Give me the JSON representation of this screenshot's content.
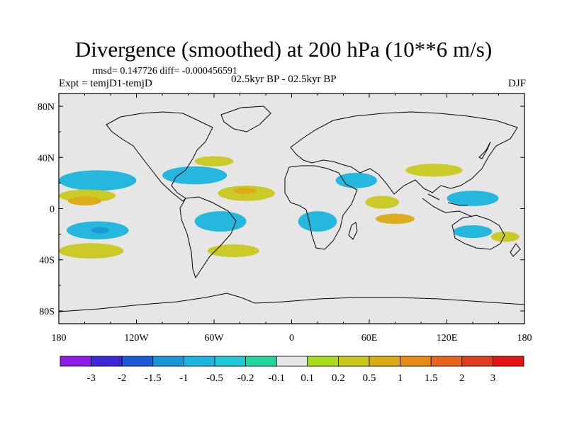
{
  "chart_data": {
    "type": "heatmap",
    "subtype": "filled-contour world map",
    "title": "Divergence (smoothed) at 200 hPa (10**6 m/s)",
    "stats": "rmsd= 0.147726 diff= -0.000456591",
    "experiment": "Expt = temjD1-temjD",
    "period": "02.5kyr BP - 02.5kyr BP",
    "season": "DJF",
    "x_axis": {
      "range": [
        -180,
        180
      ],
      "ticks": [
        -180,
        -120,
        -60,
        0,
        60,
        120,
        180
      ],
      "tick_labels": [
        "180",
        "120W",
        "60W",
        "0",
        "60E",
        "120E",
        "180"
      ]
    },
    "y_axis": {
      "range": [
        -90,
        90
      ],
      "ticks": [
        80,
        40,
        0,
        -40,
        -80
      ],
      "tick_labels": [
        "80N",
        "40N",
        "0",
        "40S",
        "80S"
      ]
    },
    "colorbar": {
      "labels": [
        "-3",
        "-2",
        "-1.5",
        "-1",
        "-0.5",
        "-0.2",
        "-0.1",
        "0.1",
        "0.2",
        "0.5",
        "1",
        "1.5",
        "2",
        "3"
      ],
      "colors": [
        "#8c1ce6",
        "#3c28d6",
        "#1e5ad6",
        "#1a96d6",
        "#1ab4dc",
        "#1ec8d4",
        "#26d6a0",
        "#e6e6e6",
        "#a8dc1e",
        "#c8c81e",
        "#dcaa14",
        "#e68c14",
        "#e6641e",
        "#e03c1e",
        "#e61414"
      ]
    },
    "regions": [
      {
        "name": "north-pacific-neg",
        "level": "-0.5",
        "lon": -150,
        "lat": 22,
        "w": 60,
        "h": 16
      },
      {
        "name": "north-pacific-pos",
        "level": "0.2",
        "lon": -158,
        "lat": 10,
        "w": 44,
        "h": 10
      },
      {
        "name": "central-pacific-pos",
        "level": "0.5",
        "lon": -160,
        "lat": 6,
        "w": 26,
        "h": 7
      },
      {
        "name": "south-pacific-neg",
        "level": "-0.5",
        "lon": -150,
        "lat": -17,
        "w": 48,
        "h": 14
      },
      {
        "name": "south-pacific-core",
        "level": "-1",
        "lon": -148,
        "lat": -17,
        "w": 14,
        "h": 5
      },
      {
        "name": "south-pacific-pos",
        "level": "0.2",
        "lon": -155,
        "lat": -33,
        "w": 50,
        "h": 12
      },
      {
        "name": "na-neg",
        "level": "-0.5",
        "lon": -75,
        "lat": 26,
        "w": 50,
        "h": 14
      },
      {
        "name": "na-pos",
        "level": "0.2",
        "lon": -60,
        "lat": 37,
        "w": 30,
        "h": 8
      },
      {
        "name": "amazon-neg",
        "level": "-0.5",
        "lon": -55,
        "lat": -10,
        "w": 40,
        "h": 16
      },
      {
        "name": "atlantic-pos",
        "level": "0.2",
        "lon": -35,
        "lat": 12,
        "w": 44,
        "h": 12
      },
      {
        "name": "atlantic-core",
        "level": "0.5",
        "lon": -36,
        "lat": 14,
        "w": 18,
        "h": 5
      },
      {
        "name": "south-atlantic-pos",
        "level": "0.2",
        "lon": -45,
        "lat": -33,
        "w": 40,
        "h": 10
      },
      {
        "name": "africa-neg",
        "level": "-0.5",
        "lon": 20,
        "lat": -10,
        "w": 30,
        "h": 16
      },
      {
        "name": "middle-east-neg",
        "level": "-0.5",
        "lon": 50,
        "lat": 22,
        "w": 32,
        "h": 12
      },
      {
        "name": "india-pos",
        "level": "0.2",
        "lon": 70,
        "lat": 5,
        "w": 26,
        "h": 10
      },
      {
        "name": "indian-ocean-pos",
        "level": "0.5",
        "lon": 80,
        "lat": -8,
        "w": 30,
        "h": 8
      },
      {
        "name": "asia-pos",
        "level": "0.2",
        "lon": 110,
        "lat": 30,
        "w": 44,
        "h": 10
      },
      {
        "name": "west-pacific-neg",
        "level": "-0.5",
        "lon": 140,
        "lat": 8,
        "w": 40,
        "h": 12
      },
      {
        "name": "australia-neg",
        "level": "-0.5",
        "lon": 140,
        "lat": -18,
        "w": 30,
        "h": 10
      },
      {
        "name": "east-aus-pos",
        "level": "0.2",
        "lon": 165,
        "lat": -22,
        "w": 22,
        "h": 8
      }
    ]
  }
}
